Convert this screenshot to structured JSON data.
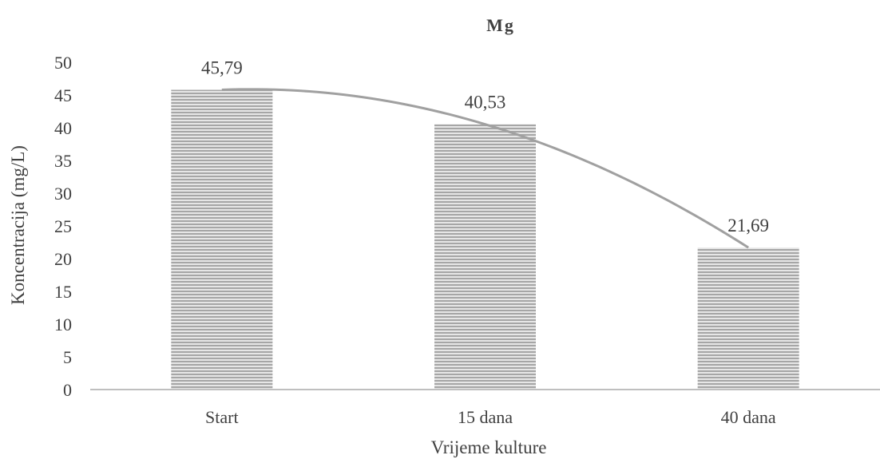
{
  "chart_data": {
    "type": "bar",
    "title": "Mg",
    "xlabel": "Vrijeme kulture",
    "ylabel": "Koncentracija (mg/L)",
    "categories": [
      "Start",
      "15 dana",
      "40 dana"
    ],
    "values": [
      45.79,
      40.53,
      21.69
    ],
    "data_labels": [
      "45,79",
      "40,53",
      "21,69"
    ],
    "yticks": [
      0,
      5,
      10,
      15,
      20,
      25,
      30,
      35,
      40,
      45,
      50
    ],
    "ylim": [
      0,
      50
    ],
    "grid": false,
    "legend": "none",
    "trendline": "polynomial",
    "colors": {
      "bar_stripe_dark": "#a6a6a6",
      "bar_stripe_light": "#e6e6e6",
      "trendline": "#a0a0a0",
      "axis": "#bfbfbf",
      "text": "#404040"
    }
  }
}
